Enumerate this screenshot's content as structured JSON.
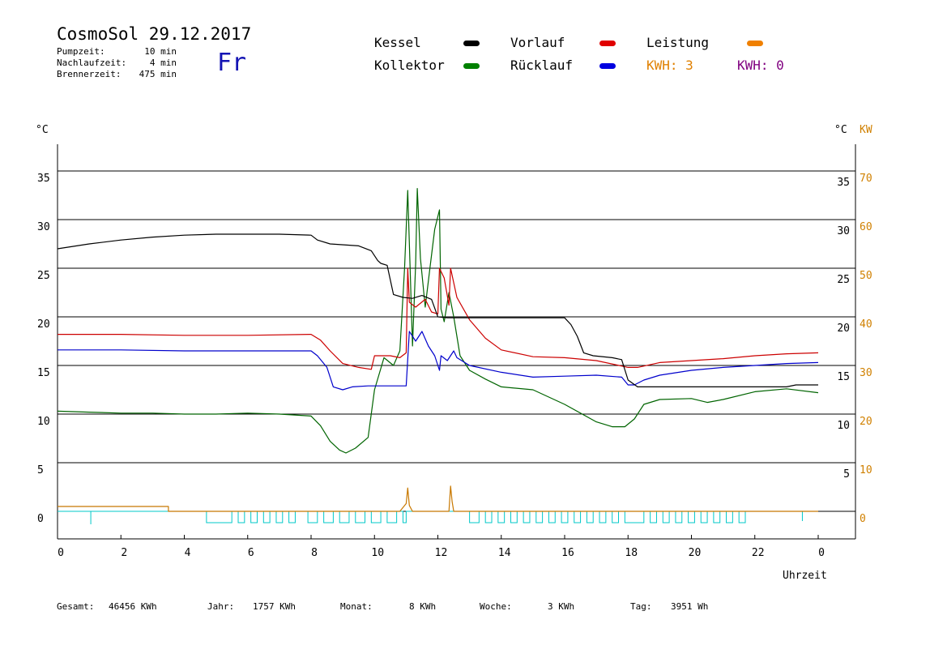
{
  "header": {
    "title": "CosmoSol 29.12.2017",
    "weekday": "Fr",
    "stats": [
      {
        "label": "Pumpzeit:",
        "value": "10 min"
      },
      {
        "label": "Nachlaufzeit:",
        "value": "4 min"
      },
      {
        "label": "Brennerzeit:",
        "value": "475 min"
      }
    ]
  },
  "legend": {
    "items": [
      {
        "label": "Kessel",
        "color": "#000000"
      },
      {
        "label": "Vorlauf",
        "color": "#e00000"
      },
      {
        "label": "Leistung",
        "color": "#f08000"
      },
      {
        "label": "Kollektor",
        "color": "#008000"
      },
      {
        "label": "Rücklauf",
        "color": "#0000e0"
      }
    ],
    "kwh_left": {
      "label": "KWH: 3",
      "color": "#e08000"
    },
    "kwh_right": {
      "label": "KWH: 0",
      "color": "#800080"
    }
  },
  "footer": {
    "gesamt": {
      "label": "Gesamt:",
      "value": "46456 KWh"
    },
    "jahr": {
      "label": "Jahr:",
      "value": "1757 KWh"
    },
    "monat": {
      "label": "Monat:",
      "value": "8 KWh"
    },
    "woche": {
      "label": "Woche:",
      "value": "3 KWh"
    },
    "tag": {
      "label": "Tag:",
      "value": "3951 Wh"
    }
  },
  "chart_data": {
    "type": "line",
    "xlabel": "Uhrzeit",
    "ylabel_left": "°C",
    "ylabel_right_1": "°C",
    "ylabel_right_2": "KW",
    "xlim": [
      0,
      24
    ],
    "ylim": [
      0,
      38
    ],
    "x_ticks": [
      "0",
      "2",
      "4",
      "6",
      "8",
      "10",
      "12",
      "14",
      "16",
      "18",
      "20",
      "22",
      "0"
    ],
    "y_ticks_left": [
      "35",
      "30",
      "25",
      "20",
      "15",
      "10",
      "5",
      "0"
    ],
    "y_ticks_right_temp": [
      "35",
      "30",
      "25",
      "20",
      "15",
      "10",
      "5"
    ],
    "y_ticks_right_kw": [
      "70",
      "60",
      "50",
      "40",
      "30",
      "20",
      "10",
      "0"
    ],
    "grid": true,
    "series": [
      {
        "name": "Kessel",
        "color": "#000000",
        "x": [
          0,
          1,
          2,
          3,
          4,
          5,
          6,
          7,
          8,
          8.2,
          8.6,
          9.5,
          9.9,
          10.1,
          10.2,
          10.4,
          10.6,
          10.9,
          11.2,
          11.5,
          11.8,
          12.0,
          12.3,
          12.6,
          13,
          14,
          15,
          16,
          16.2,
          16.4,
          16.6,
          16.9,
          17.5,
          17.8,
          18,
          18.3,
          19,
          20,
          21,
          22,
          23,
          23.3,
          24
        ],
        "y": [
          27.0,
          27.5,
          27.9,
          28.2,
          28.4,
          28.5,
          28.5,
          28.5,
          28.4,
          27.9,
          27.5,
          27.3,
          26.8,
          25.8,
          25.5,
          25.3,
          22.3,
          22.0,
          21.9,
          22.2,
          21.8,
          20.0,
          19.9,
          19.9,
          19.9,
          19.9,
          19.9,
          19.9,
          19.2,
          18.0,
          16.3,
          16.0,
          15.8,
          15.6,
          13.5,
          12.8,
          12.8,
          12.8,
          12.8,
          12.8,
          12.8,
          13.0,
          13.0
        ]
      },
      {
        "name": "Vorlauf",
        "color": "#cc0000",
        "x": [
          0,
          2,
          4,
          6,
          8,
          8.3,
          8.6,
          9,
          9.5,
          9.9,
          10,
          10.5,
          10.8,
          11.0,
          11.05,
          11.1,
          11.3,
          11.6,
          11.8,
          12.0,
          12.05,
          12.2,
          12.35,
          12.4,
          12.6,
          13,
          13.5,
          14,
          15,
          16,
          17,
          18,
          18.3,
          19,
          20,
          21,
          22,
          23,
          24
        ],
        "y": [
          18.2,
          18.2,
          18.1,
          18.1,
          18.2,
          17.6,
          16.5,
          15.2,
          14.8,
          14.6,
          16.0,
          16.0,
          15.8,
          16.3,
          25.0,
          21.5,
          21.0,
          21.8,
          20.5,
          20.3,
          25.0,
          24.0,
          21.2,
          25.0,
          22.0,
          19.7,
          17.8,
          16.6,
          15.9,
          15.8,
          15.5,
          14.8,
          14.8,
          15.3,
          15.5,
          15.7,
          16.0,
          16.2,
          16.3
        ]
      },
      {
        "name": "Rücklauf",
        "color": "#0000cc",
        "x": [
          0,
          2,
          4,
          6,
          8,
          8.2,
          8.5,
          8.7,
          9,
          9.3,
          9.8,
          10,
          10.4,
          11.0,
          11.1,
          11.3,
          11.5,
          11.7,
          11.9,
          12.05,
          12.1,
          12.3,
          12.5,
          12.6,
          13,
          14,
          15,
          16,
          17,
          17.8,
          18,
          18.2,
          18.5,
          19,
          20,
          21,
          22,
          23,
          24
        ],
        "y": [
          16.6,
          16.6,
          16.5,
          16.5,
          16.5,
          16.0,
          14.8,
          12.8,
          12.5,
          12.8,
          12.9,
          12.9,
          12.9,
          12.9,
          18.5,
          17.5,
          18.5,
          17.0,
          16.0,
          14.5,
          16.0,
          15.5,
          16.5,
          15.8,
          15.0,
          14.3,
          13.8,
          13.9,
          14.0,
          13.8,
          13.0,
          13.0,
          13.5,
          14.0,
          14.5,
          14.8,
          15.0,
          15.2,
          15.3
        ]
      },
      {
        "name": "Kollektor",
        "color": "#006400",
        "x": [
          0,
          1,
          2,
          3,
          4,
          5,
          6,
          7,
          8,
          8.3,
          8.6,
          8.9,
          9.1,
          9.4,
          9.8,
          10,
          10.3,
          10.6,
          10.8,
          10.95,
          11.05,
          11.2,
          11.3,
          11.35,
          11.45,
          11.6,
          11.75,
          11.9,
          12.05,
          12.1,
          12.2,
          12.35,
          12.5,
          12.7,
          13,
          13.5,
          14,
          15,
          16,
          17,
          17.5,
          17.9,
          18.2,
          18.5,
          19,
          20,
          20.5,
          21,
          22,
          23,
          24
        ],
        "y": [
          10.3,
          10.2,
          10.1,
          10.1,
          10.0,
          10.0,
          10.1,
          10.0,
          9.8,
          8.8,
          7.2,
          6.3,
          6.0,
          6.5,
          7.6,
          12.5,
          15.8,
          15.0,
          16.5,
          25.0,
          33.0,
          17.0,
          25.5,
          33.2,
          26.0,
          21.0,
          25.0,
          29.0,
          31.0,
          20.8,
          19.5,
          22.5,
          20.0,
          16.0,
          14.5,
          13.6,
          12.8,
          12.5,
          11.0,
          9.2,
          8.7,
          8.7,
          9.5,
          11.0,
          11.5,
          11.6,
          11.2,
          11.5,
          12.3,
          12.6,
          12.2
        ]
      },
      {
        "name": "Leistung",
        "color": "#c87800",
        "x": [
          0,
          3.5,
          3.5,
          10.8,
          11.0,
          11.05,
          11.1,
          11.2,
          12.35,
          12.4,
          12.45,
          12.5,
          24
        ],
        "y": [
          0.5,
          0.5,
          0.0,
          0.0,
          0.8,
          2.4,
          0.6,
          0.0,
          0.0,
          2.6,
          1.0,
          0.0,
          0.0
        ]
      }
    ]
  }
}
